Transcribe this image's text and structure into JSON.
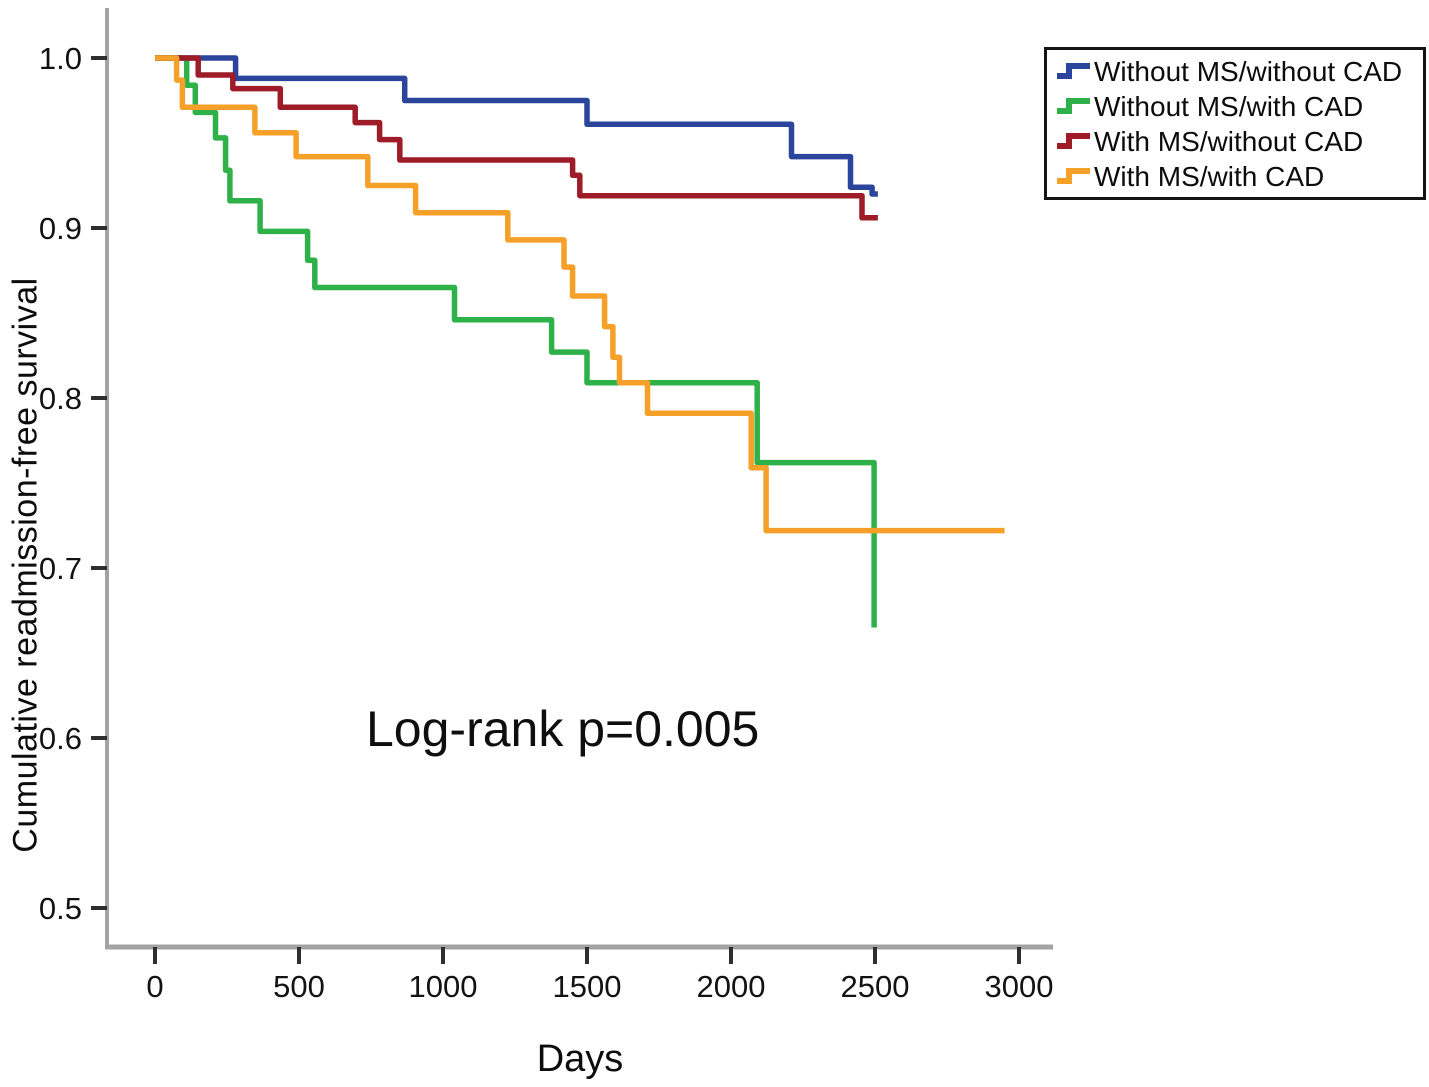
{
  "figure": {
    "background_color": "#ffffff",
    "axis_line_color": "#a3a3a3",
    "tick_mark_color": "#2e2e2e",
    "text_color": "#0c0c0c"
  },
  "chart_data": {
    "type": "line",
    "chart_style": "kaplan-meier-step-survival",
    "title": "",
    "xlabel": "Days",
    "ylabel": "Cumulative readmission-free survival",
    "annotation": "Log-rank p=0.005",
    "p_value": "0.005",
    "grid": false,
    "xlim": [
      -170,
      3120
    ],
    "ylim": [
      0.477,
      1.029
    ],
    "x_ticks": [
      0,
      500,
      1000,
      1500,
      2000,
      2500,
      3000
    ],
    "y_ticks": [
      {
        "value": 1.0,
        "label": "1.0"
      },
      {
        "value": 0.9,
        "label": "0.9"
      },
      {
        "value": 0.8,
        "label": "0.8"
      },
      {
        "value": 0.7,
        "label": "0.7"
      },
      {
        "value": 0.6,
        "label": "0.6"
      },
      {
        "value": 0.5,
        "label": "0.5"
      }
    ],
    "legend": {
      "position": "top-right",
      "border": true
    },
    "series": [
      {
        "name": "Without MS/without CAD",
        "color": "#2c459c",
        "points": [
          [
            0,
            1.0
          ],
          [
            280,
            0.988
          ],
          [
            867,
            0.975
          ],
          [
            1500,
            0.961
          ],
          [
            2210,
            0.942
          ],
          [
            2415,
            0.924
          ],
          [
            2490,
            0.92
          ]
        ],
        "end_day": 2510
      },
      {
        "name": "Without MS/with CAD",
        "color": "#2fb14a",
        "points": [
          [
            0,
            1.0
          ],
          [
            110,
            0.984
          ],
          [
            140,
            0.968
          ],
          [
            210,
            0.953
          ],
          [
            245,
            0.934
          ],
          [
            260,
            0.916
          ],
          [
            365,
            0.898
          ],
          [
            530,
            0.881
          ],
          [
            555,
            0.865
          ],
          [
            1040,
            0.846
          ],
          [
            1377,
            0.827
          ],
          [
            1500,
            0.809
          ],
          [
            2091,
            0.762
          ],
          [
            2497,
            0.665
          ]
        ],
        "end_day": 2497
      },
      {
        "name": "With MS/without CAD",
        "color": "#9e1b28",
        "points": [
          [
            0,
            1.0
          ],
          [
            150,
            0.99
          ],
          [
            270,
            0.982
          ],
          [
            435,
            0.971
          ],
          [
            695,
            0.962
          ],
          [
            780,
            0.952
          ],
          [
            850,
            0.94
          ],
          [
            1450,
            0.931
          ],
          [
            1475,
            0.919
          ],
          [
            2455,
            0.906
          ]
        ],
        "end_day": 2510
      },
      {
        "name": "With MS/with CAD",
        "color": "#f5a028",
        "points": [
          [
            0,
            1.0
          ],
          [
            75,
            0.987
          ],
          [
            95,
            0.971
          ],
          [
            347,
            0.956
          ],
          [
            490,
            0.942
          ],
          [
            739,
            0.925
          ],
          [
            905,
            0.909
          ],
          [
            1225,
            0.893
          ],
          [
            1420,
            0.877
          ],
          [
            1450,
            0.86
          ],
          [
            1561,
            0.842
          ],
          [
            1590,
            0.824
          ],
          [
            1613,
            0.809
          ],
          [
            1710,
            0.791
          ],
          [
            2070,
            0.759
          ],
          [
            2122,
            0.722
          ]
        ],
        "end_day": 2950
      }
    ]
  }
}
